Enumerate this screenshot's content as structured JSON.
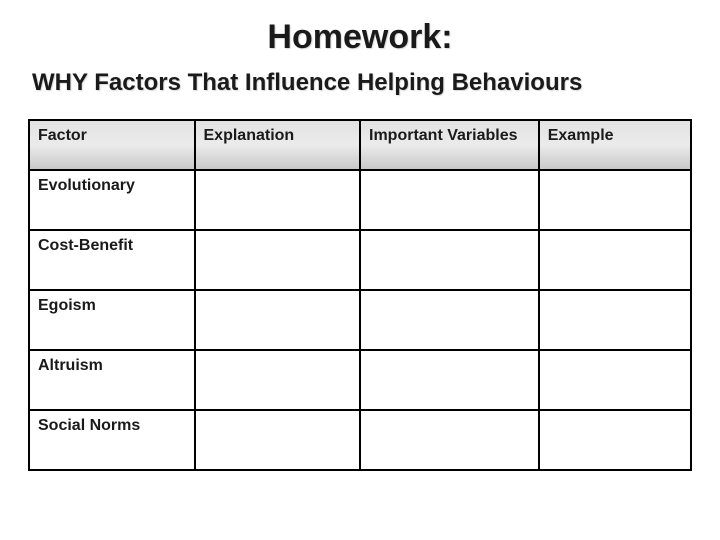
{
  "titles": {
    "main": "Homework:",
    "sub": "WHY Factors That Influence Helping Behaviours"
  },
  "table": {
    "columns": [
      "Factor",
      "Explanation",
      "Important Variables",
      "Example"
    ],
    "col_widths": [
      "25%",
      "25%",
      "27%",
      "23%"
    ],
    "rows": [
      {
        "label": "Evolutionary",
        "cells": [
          "",
          "",
          ""
        ]
      },
      {
        "label": "Cost-Benefit",
        "cells": [
          "",
          "",
          ""
        ]
      },
      {
        "label": "Egoism",
        "cells": [
          "",
          "",
          ""
        ]
      },
      {
        "label": "Altruism",
        "cells": [
          "",
          "",
          ""
        ]
      },
      {
        "label": "Social Norms",
        "cells": [
          "",
          "",
          ""
        ]
      }
    ],
    "header_bg_gradient": [
      "#e2e2e2",
      "#c9c9c9"
    ],
    "border_color": "#000000",
    "title_font_size": 34,
    "subtitle_font_size": 24,
    "cell_font_size": 16,
    "header_row_height": 50,
    "body_row_height": 60
  }
}
